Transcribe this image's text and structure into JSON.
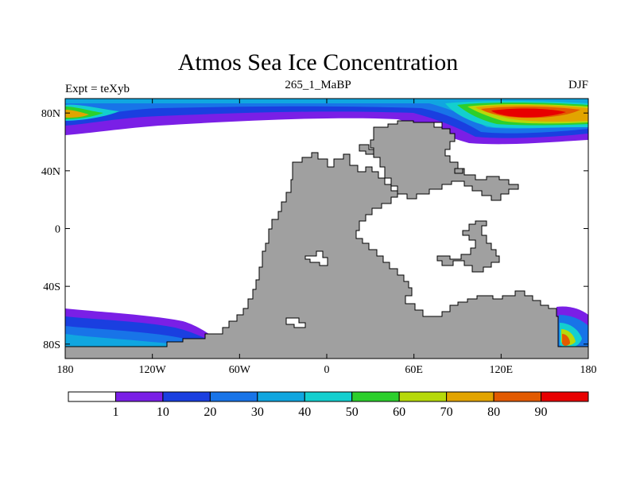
{
  "title": "Atmos Sea Ice Concentration",
  "left_string": "Expt = teXyb",
  "center_string": "265_1_MaBP",
  "right_string": "DJF",
  "map": {
    "projection": "cylindrical-equidistant",
    "lon_range": [
      -180,
      180
    ],
    "lat_range": [
      -90,
      90
    ],
    "lon_ticks": [
      {
        "value": -180,
        "label": "180"
      },
      {
        "value": -120,
        "label": "120W"
      },
      {
        "value": -60,
        "label": "60W"
      },
      {
        "value": 0,
        "label": "0"
      },
      {
        "value": 60,
        "label": "60E"
      },
      {
        "value": 120,
        "label": "120E"
      },
      {
        "value": 180,
        "label": "180"
      }
    ],
    "lat_ticks": [
      {
        "value": 80,
        "label": "80N"
      },
      {
        "value": 40,
        "label": "40N"
      },
      {
        "value": 0,
        "label": "0"
      },
      {
        "value": -40,
        "label": "40S"
      },
      {
        "value": -80,
        "label": "80S"
      }
    ],
    "land_color": "#a0a0a0"
  },
  "colorbar": {
    "labels": [
      "1",
      "10",
      "20",
      "30",
      "40",
      "50",
      "60",
      "70",
      "80",
      "90"
    ],
    "colors": [
      "#ffffff",
      "#7a1fe6",
      "#1a3fe0",
      "#1874e8",
      "#10a6e0",
      "#13cfcf",
      "#2ccf2c",
      "#b6d90a",
      "#e2a400",
      "#e25a00",
      "#e80000"
    ]
  }
}
